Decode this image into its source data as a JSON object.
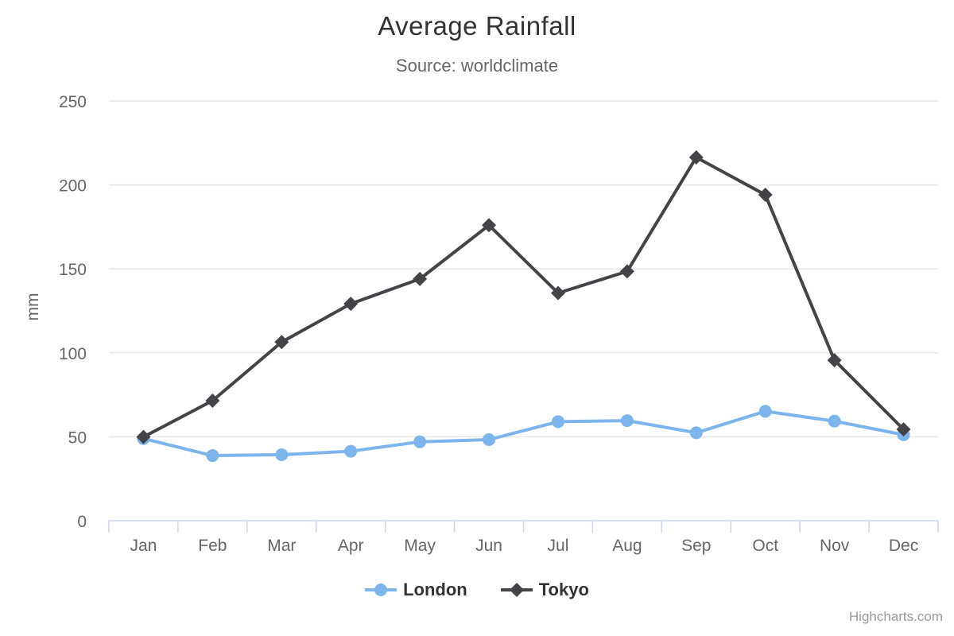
{
  "page": {
    "credit": "Highcharts.com"
  },
  "chart_data": {
    "type": "line",
    "title": "Average Rainfall",
    "subtitle": "Source: worldclimate",
    "xlabel": "",
    "ylabel": "mm",
    "categories": [
      "Jan",
      "Feb",
      "Mar",
      "Apr",
      "May",
      "Jun",
      "Jul",
      "Aug",
      "Sep",
      "Oct",
      "Nov",
      "Dec"
    ],
    "series": [
      {
        "name": "London",
        "color": "#7cb5ec",
        "marker": "circle",
        "values": [
          48.9,
          38.8,
          39.3,
          41.4,
          47.0,
          48.3,
          59.0,
          59.6,
          52.4,
          65.2,
          59.3,
          51.2
        ]
      },
      {
        "name": "Tokyo",
        "color": "#434348",
        "marker": "diamond",
        "values": [
          49.9,
          71.5,
          106.4,
          129.2,
          144.0,
          176.0,
          135.6,
          148.5,
          216.4,
          194.1,
          95.6,
          54.4
        ]
      }
    ],
    "ylim": [
      0,
      250
    ],
    "y_ticks": [
      0,
      50,
      100,
      150,
      200,
      250
    ],
    "grid": true,
    "legend_position": "bottom",
    "colors": {
      "gridline": "#e6e6e6",
      "axis_line": "#ccd6eb",
      "title_text": "#333333",
      "subtitle_text": "#666666",
      "tick_label": "#666666",
      "legend_text": "#333333",
      "credit_text": "#999999",
      "background": "#ffffff"
    }
  }
}
